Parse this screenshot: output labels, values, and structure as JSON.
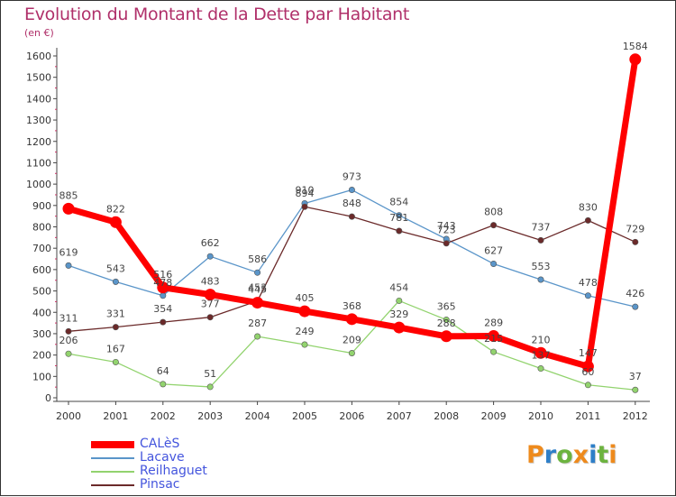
{
  "chart_data": {
    "type": "line",
    "title": "Evolution du Montant de la Dette par Habitant",
    "ylabel": "(en €)",
    "xlabel": "",
    "x": [
      "2000",
      "2001",
      "2002",
      "2003",
      "2004",
      "2005",
      "2006",
      "2007",
      "2008",
      "2009",
      "2010",
      "2011",
      "2012"
    ],
    "ylim": [
      0,
      1600
    ],
    "yticks": [
      "0",
      "100",
      "200",
      "300",
      "400",
      "500",
      "600",
      "700",
      "800",
      "900",
      "1000",
      "1100",
      "1200",
      "1300",
      "1400",
      "1500",
      "1600"
    ],
    "grid": false,
    "legend_position": "bottom-left",
    "series": [
      {
        "name": "CALèS",
        "color": "#ff0000",
        "values": [
          885,
          822,
          516,
          483,
          445,
          405,
          368,
          329,
          288,
          289,
          210,
          147,
          1584
        ]
      },
      {
        "name": "Lacave",
        "color": "#5a95c9",
        "values": [
          619,
          543,
          478,
          662,
          586,
          910,
          973,
          854,
          743,
          627,
          553,
          478,
          426
        ]
      },
      {
        "name": "Reilhaguet",
        "color": "#92d36e",
        "values": [
          206,
          167,
          64,
          51,
          287,
          249,
          209,
          454,
          365,
          215,
          137,
          60,
          37
        ]
      },
      {
        "name": "Pinsac",
        "color": "#6b2a2a",
        "values": [
          311,
          331,
          354,
          377,
          453,
          894,
          848,
          781,
          723,
          808,
          737,
          830,
          729
        ]
      }
    ]
  },
  "logo": {
    "letters": [
      "P",
      "r",
      "o",
      "x",
      "i",
      "t",
      "i"
    ],
    "colors": [
      "#ee8a1c",
      "#2e7fc8",
      "#6cb33f",
      "#ee8a1c",
      "#2e7fc8",
      "#6cb33f",
      "#ee8a1c"
    ]
  }
}
